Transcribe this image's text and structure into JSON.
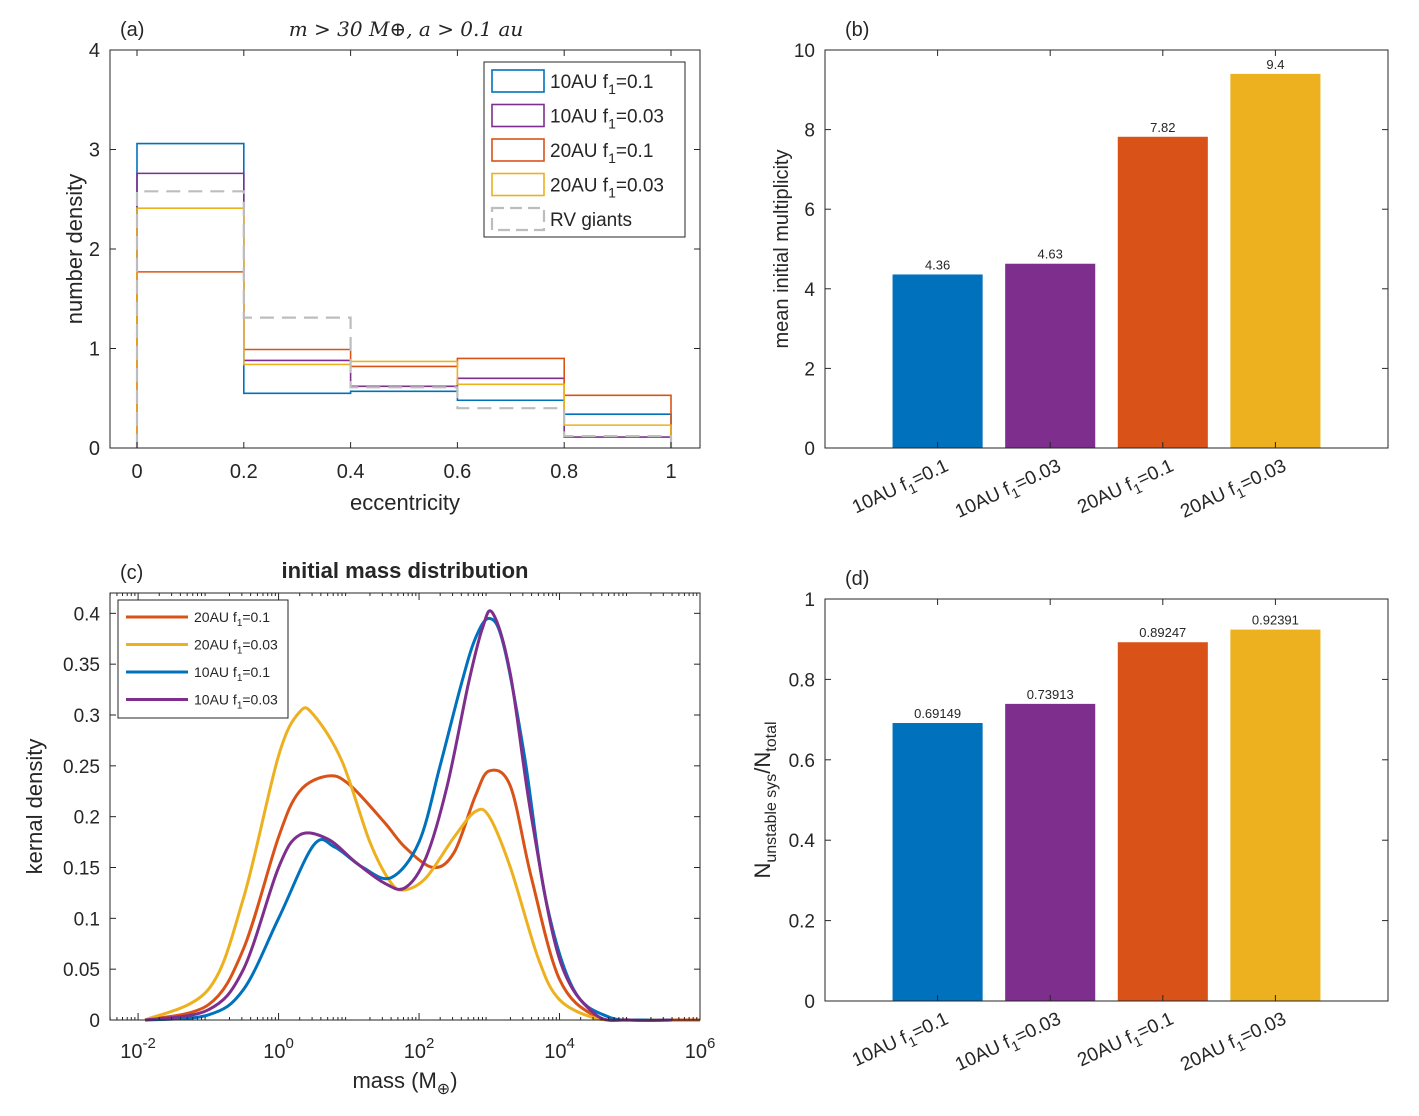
{
  "chart_data": [
    {
      "panel": "(a)",
      "type": "histogram-stairs",
      "title": "m > 30 M⊕, a > 0.1 au",
      "xlabel": "eccentricity",
      "ylabel": "number density",
      "xlim": [
        0,
        1
      ],
      "ylim": [
        0,
        4
      ],
      "xticks": [
        "0",
        "0.2",
        "0.4",
        "0.6",
        "0.8",
        "1"
      ],
      "yticks": [
        "0",
        "1",
        "2",
        "3",
        "4"
      ],
      "bin_edges": [
        0,
        0.2,
        0.4,
        0.6,
        0.8,
        1.0
      ],
      "legend_position": "top-right",
      "series": [
        {
          "name": "10AU f1=0.1",
          "label_main": "10AU f",
          "label_sub": "1",
          "label_tail": "=0.1",
          "color": "#0072bd",
          "style": "solid",
          "values": [
            3.06,
            0.55,
            0.57,
            0.48,
            0.34
          ]
        },
        {
          "name": "10AU f1=0.03",
          "label_main": "10AU f",
          "label_sub": "1",
          "label_tail": "=0.03",
          "color": "#7e2f8e",
          "style": "solid",
          "values": [
            2.76,
            0.88,
            0.62,
            0.7,
            0.11
          ]
        },
        {
          "name": "20AU f1=0.1",
          "label_main": "20AU f",
          "label_sub": "1",
          "label_tail": "=0.1",
          "color": "#d95319",
          "style": "solid",
          "values": [
            1.77,
            0.99,
            0.82,
            0.9,
            0.53
          ]
        },
        {
          "name": "20AU f1=0.03",
          "label_main": "20AU f",
          "label_sub": "1",
          "label_tail": "=0.03",
          "color": "#edb120",
          "style": "solid",
          "values": [
            2.41,
            0.84,
            0.87,
            0.64,
            0.23
          ]
        },
        {
          "name": "RV giants",
          "label_main": "RV giants",
          "label_sub": "",
          "label_tail": "",
          "color": "#bdbdbd",
          "style": "dashed",
          "values": [
            2.58,
            1.31,
            0.61,
            0.4,
            0.12
          ]
        }
      ]
    },
    {
      "panel": "(b)",
      "type": "bar",
      "ylabel": "mean initial multiplicity",
      "ylim": [
        0,
        10
      ],
      "yticks": [
        "0",
        "2",
        "4",
        "6",
        "8",
        "10"
      ],
      "categories": [
        {
          "main": "10AU f",
          "sub": "1",
          "tail": "=0.1"
        },
        {
          "main": "10AU f",
          "sub": "1",
          "tail": "=0.03"
        },
        {
          "main": "20AU f",
          "sub": "1",
          "tail": "=0.1"
        },
        {
          "main": "20AU f",
          "sub": "1",
          "tail": "=0.03"
        }
      ],
      "values": [
        4.36,
        4.63,
        7.82,
        9.4
      ],
      "value_labels": [
        "4.36",
        "4.63",
        "7.82",
        "9.4"
      ],
      "colors": [
        "#0072bd",
        "#7e2f8e",
        "#d95319",
        "#edb120"
      ]
    },
    {
      "panel": "(c)",
      "type": "line",
      "title": "initial mass distribution",
      "xlabel": "mass (M⊕)",
      "ylabel": "kernal density",
      "xscale": "log",
      "xlim_log10": [
        -2.4,
        6
      ],
      "ylim": [
        0,
        0.42
      ],
      "xticks": [
        {
          "base": "10",
          "exp": "-2"
        },
        {
          "base": "10",
          "exp": "0"
        },
        {
          "base": "10",
          "exp": "2"
        },
        {
          "base": "10",
          "exp": "4"
        },
        {
          "base": "10",
          "exp": "6"
        }
      ],
      "yticks": [
        "0",
        "0.05",
        "0.1",
        "0.15",
        "0.2",
        "0.25",
        "0.3",
        "0.35",
        "0.4"
      ],
      "legend_position": "top-left",
      "series": [
        {
          "name": "20AU f1=0.1",
          "label_main": "20AU f",
          "label_sub": "1",
          "label_tail": "=0.1",
          "color": "#d95319",
          "log10_mass": [
            -1.9,
            -1.0,
            -0.5,
            0.0,
            0.3,
            0.7,
            1.0,
            1.5,
            1.8,
            2.2,
            2.5,
            2.8,
            3.0,
            3.3,
            3.6,
            4.0,
            4.5,
            5.0,
            5.5,
            6.0
          ],
          "density": [
            0.0,
            0.015,
            0.07,
            0.18,
            0.225,
            0.24,
            0.232,
            0.195,
            0.17,
            0.15,
            0.165,
            0.22,
            0.245,
            0.23,
            0.14,
            0.04,
            0.004,
            0.0,
            0.0,
            0.0
          ]
        },
        {
          "name": "20AU f1=0.03",
          "label_main": "20AU f",
          "label_sub": "1",
          "label_tail": "=0.03",
          "color": "#edb120",
          "log10_mass": [
            -1.9,
            -1.0,
            -0.5,
            0.0,
            0.3,
            0.5,
            0.9,
            1.3,
            1.6,
            1.8,
            2.1,
            2.5,
            2.8,
            3.0,
            3.3,
            3.7,
            4.0,
            4.5,
            5.0,
            5.5
          ],
          "density": [
            0.0,
            0.03,
            0.12,
            0.26,
            0.303,
            0.3,
            0.255,
            0.175,
            0.135,
            0.128,
            0.14,
            0.18,
            0.205,
            0.2,
            0.15,
            0.06,
            0.02,
            0.002,
            0.0,
            0.0
          ]
        },
        {
          "name": "10AU f1=0.1",
          "label_main": "10AU f",
          "label_sub": "1",
          "label_tail": "=0.1",
          "color": "#0072bd",
          "log10_mass": [
            -1.9,
            -1.0,
            -0.5,
            0.0,
            0.5,
            0.8,
            1.2,
            1.6,
            2.0,
            2.3,
            2.6,
            2.8,
            3.0,
            3.2,
            3.5,
            3.8,
            4.2,
            4.7,
            5.2,
            5.6
          ],
          "density": [
            0.0,
            0.005,
            0.03,
            0.1,
            0.172,
            0.17,
            0.15,
            0.14,
            0.175,
            0.25,
            0.33,
            0.375,
            0.395,
            0.37,
            0.26,
            0.12,
            0.03,
            0.003,
            0.0,
            0.0
          ]
        },
        {
          "name": "10AU f1=0.03",
          "label_main": "10AU f",
          "label_sub": "1",
          "label_tail": "=0.03",
          "color": "#7e2f8e",
          "log10_mass": [
            -1.9,
            -1.0,
            -0.5,
            0.0,
            0.3,
            0.7,
            1.1,
            1.5,
            1.8,
            2.1,
            2.4,
            2.7,
            2.9,
            3.05,
            3.3,
            3.6,
            4.0,
            4.5,
            5.0,
            5.6
          ],
          "density": [
            0.0,
            0.01,
            0.05,
            0.15,
            0.182,
            0.178,
            0.155,
            0.135,
            0.13,
            0.16,
            0.23,
            0.33,
            0.385,
            0.4,
            0.34,
            0.2,
            0.06,
            0.006,
            0.0,
            0.0
          ]
        }
      ]
    },
    {
      "panel": "(d)",
      "type": "bar",
      "ylabel_main": "N",
      "ylabel_sub1": "unstable sys",
      "ylabel_mid": "/N",
      "ylabel_sub2": "total",
      "ylim": [
        0,
        1
      ],
      "yticks": [
        "0",
        "0.2",
        "0.4",
        "0.6",
        "0.8",
        "1"
      ],
      "categories": [
        {
          "main": "10AU f",
          "sub": "1",
          "tail": "=0.1"
        },
        {
          "main": "10AU f",
          "sub": "1",
          "tail": "=0.03"
        },
        {
          "main": "20AU f",
          "sub": "1",
          "tail": "=0.1"
        },
        {
          "main": "20AU f",
          "sub": "1",
          "tail": "=0.03"
        }
      ],
      "values": [
        0.69149,
        0.73913,
        0.89247,
        0.92391
      ],
      "value_labels": [
        "0.69149",
        "0.73913",
        "0.89247",
        "0.92391"
      ],
      "colors": [
        "#0072bd",
        "#7e2f8e",
        "#d95319",
        "#edb120"
      ]
    }
  ]
}
